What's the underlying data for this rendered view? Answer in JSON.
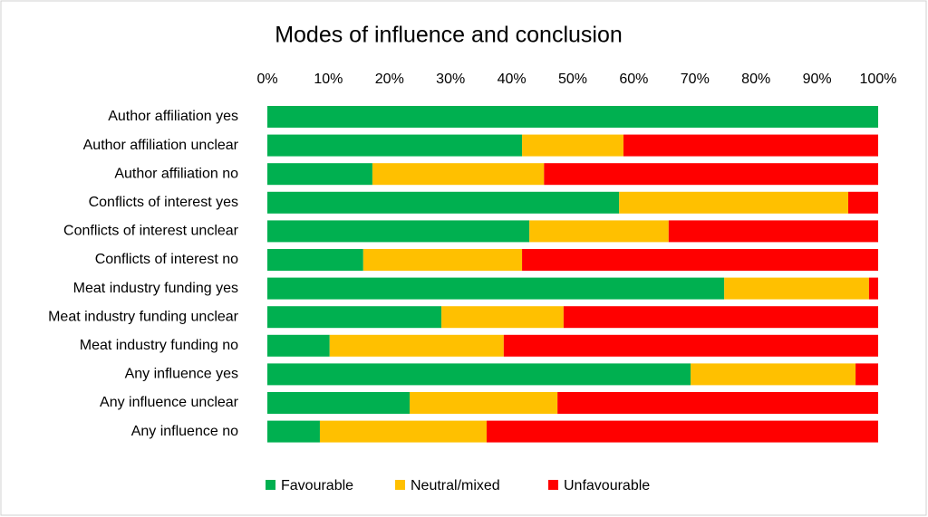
{
  "chart_data": {
    "type": "stacked-barh",
    "title": "Modes of influence and conclusion",
    "categories": [
      "Author affiliation yes",
      "Author affiliation unclear",
      "Author affiliation no",
      "Conflicts of interest yes",
      "Conflicts of interest unclear",
      "Conflicts of interest no",
      "Meat industry funding yes",
      "Meat industry funding unclear",
      "Meat industry funding no",
      "Any influence yes",
      "Any influence unclear",
      "Any influence no"
    ],
    "series": [
      {
        "name": "Favourable",
        "color": "#00b050",
        "values": [
          100,
          41.7,
          17.2,
          57.6,
          42.9,
          15.7,
          74.8,
          28.5,
          10.2,
          69.3,
          23.3,
          8.6
        ]
      },
      {
        "name": "Neutral/mixed",
        "color": "#ffc000",
        "values": [
          0,
          16.6,
          28.1,
          37.5,
          22.8,
          26.0,
          23.7,
          20.0,
          28.5,
          27.0,
          24.2,
          27.3
        ]
      },
      {
        "name": "Unfavourable",
        "color": "#ff0000",
        "values": [
          0,
          41.7,
          54.7,
          4.9,
          34.3,
          58.3,
          1.5,
          51.5,
          61.3,
          3.7,
          52.5,
          64.1
        ]
      }
    ],
    "xlim": [
      0,
      100
    ],
    "xticks": [
      {
        "value": 0,
        "label": "0%"
      },
      {
        "value": 10,
        "label": "10%"
      },
      {
        "value": 20,
        "label": "20%"
      },
      {
        "value": 30,
        "label": "30%"
      },
      {
        "value": 40,
        "label": "40%"
      },
      {
        "value": 50,
        "label": "50%"
      },
      {
        "value": 60,
        "label": "60%"
      },
      {
        "value": 70,
        "label": "70%"
      },
      {
        "value": 80,
        "label": "80%"
      },
      {
        "value": 90,
        "label": "90%"
      },
      {
        "value": 100,
        "label": "100%"
      }
    ],
    "legend": "bottom"
  }
}
